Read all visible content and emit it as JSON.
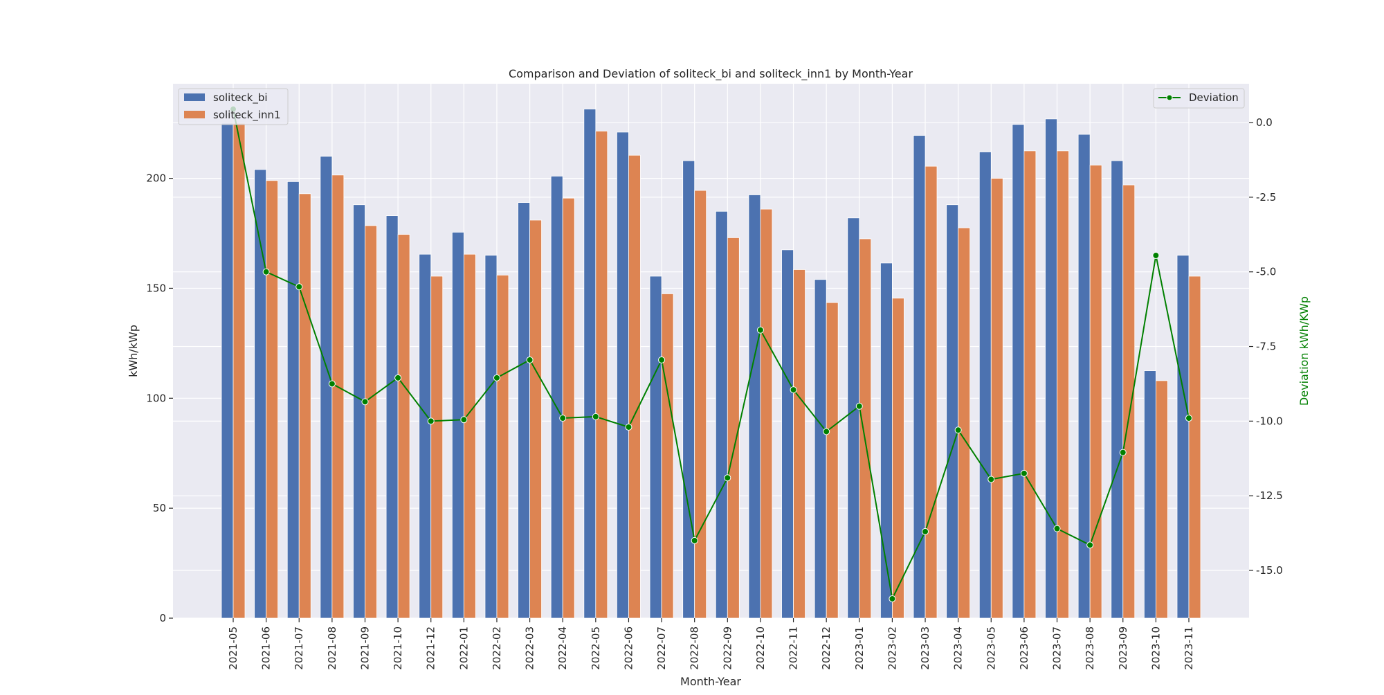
{
  "chart_data": {
    "type": "bar",
    "title": "Comparison and Deviation of soliteck_bi and soliteck_inn1 by Month-Year",
    "xlabel": "Month-Year",
    "ylabel": "kWh/kWp",
    "y2label": "Deviation kWh/KWp",
    "ylim": [
      0,
      243
    ],
    "y2lim": [
      -16.6,
      1.3
    ],
    "yticks": [
      0,
      50,
      100,
      150,
      200
    ],
    "y2ticks": [
      0.0,
      -2.5,
      -5.0,
      -7.5,
      -10.0,
      -12.5,
      -15.0
    ],
    "grid": true,
    "legend_left_position": "top-left",
    "legend_right_position": "top-right",
    "categories": [
      "2021-05",
      "2021-06",
      "2021-07",
      "2021-08",
      "2021-09",
      "2021-10",
      "2021-12",
      "2022-01",
      "2022-02",
      "2022-03",
      "2022-04",
      "2022-05",
      "2022-06",
      "2022-07",
      "2022-08",
      "2022-09",
      "2022-10",
      "2022-11",
      "2022-12",
      "2023-01",
      "2023-02",
      "2023-03",
      "2023-04",
      "2023-05",
      "2023-06",
      "2023-07",
      "2023-08",
      "2023-09",
      "2023-10",
      "2023-11"
    ],
    "series": [
      {
        "name": "soliteck_bi",
        "kind": "bar",
        "axis": "left",
        "color": "#4c72b0",
        "values": [
          225,
          204,
          198.5,
          210,
          188,
          183,
          165.5,
          175.5,
          165,
          189,
          201,
          231.5,
          221,
          155.5,
          208,
          185,
          192.5,
          167.5,
          154,
          182,
          161.5,
          219.5,
          188,
          212,
          224.5,
          227,
          220,
          208,
          112.5,
          165
        ]
      },
      {
        "name": "soliteck_inn1",
        "kind": "bar",
        "axis": "left",
        "color": "#dd8452",
        "values": [
          225,
          199,
          193,
          201.5,
          178.5,
          174.5,
          155.5,
          165.5,
          156,
          181,
          191,
          221.5,
          210.5,
          147.5,
          194.5,
          173,
          186,
          158.5,
          143.5,
          172.5,
          145.5,
          205.5,
          177.5,
          200,
          212.5,
          212.5,
          206,
          197,
          108,
          155.5
        ]
      },
      {
        "name": "Deviation",
        "kind": "line",
        "axis": "right",
        "color": "#008000",
        "values": [
          0.45,
          -5.0,
          -5.5,
          -8.75,
          -9.35,
          -8.55,
          -10.0,
          -9.95,
          -8.55,
          -7.95,
          -9.9,
          -9.85,
          -10.2,
          -7.95,
          -14.0,
          -11.9,
          -6.95,
          -8.95,
          -10.35,
          -9.5,
          -15.95,
          -13.7,
          -10.3,
          -11.95,
          -11.75,
          -13.6,
          -14.15,
          -11.05,
          -4.45,
          -9.9
        ]
      }
    ]
  }
}
